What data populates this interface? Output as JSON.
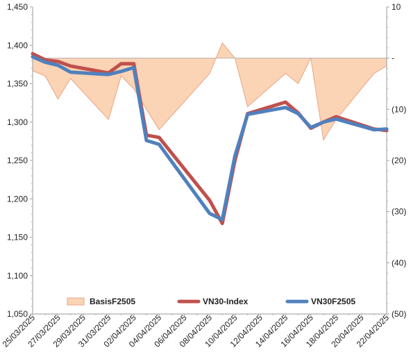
{
  "chart_data": {
    "type": "line",
    "dates": [
      "25/03/2025",
      "26/03/2025",
      "27/03/2025",
      "28/03/2025",
      "31/03/2025",
      "01/04/2025",
      "02/04/2025",
      "03/04/2025",
      "04/04/2025",
      "08/04/2025",
      "09/04/2025",
      "10/04/2025",
      "11/04/2025",
      "14/04/2025",
      "15/04/2025",
      "16/04/2025",
      "17/04/2025",
      "18/04/2025",
      "21/04/2025",
      "22/04/2025"
    ],
    "x_tick_labels": [
      "25/03/2025",
      "27/03/2025",
      "29/03/2025",
      "31/03/2025",
      "02/04/2025",
      "04/04/2025",
      "06/04/2025",
      "08/04/2025",
      "10/04/2025",
      "12/04/2025",
      "14/04/2025",
      "16/04/2025",
      "18/04/2025",
      "20/04/2025",
      "22/04/2025"
    ],
    "left_axis": {
      "ylim": [
        1050,
        1450
      ],
      "tick_labels": [
        "1,050",
        "1,100",
        "1,150",
        "1,200",
        "1,250",
        "1,300",
        "1,350",
        "1,400",
        "1,450"
      ]
    },
    "right_axis": {
      "ylim": [
        -50,
        10
      ],
      "tick_labels": [
        "(50)",
        "(40)",
        "(30)",
        "(20)",
        "(10)",
        "-",
        "10"
      ]
    },
    "series": [
      {
        "name": "VN30-Index",
        "axis": "left",
        "color": "#c0504d",
        "values": [
          1389,
          1381,
          1379,
          1373,
          1364,
          1376,
          1376,
          1283,
          1280,
          1198,
          1168,
          1250,
          1311,
          1326,
          1312,
          1292,
          1300,
          1307,
          1291,
          1289
        ]
      },
      {
        "name": "VN30F2505",
        "axis": "left",
        "color": "#4f81bd",
        "values": [
          1385,
          1378,
          1374,
          1365,
          1362,
          1366,
          1371,
          1276,
          1271,
          1181,
          1173,
          1256,
          1310,
          1319,
          1311,
          1293,
          1300,
          1304,
          1290,
          1291
        ]
      },
      {
        "name": "BasisF2505",
        "axis": "right",
        "color": "#fbd3b5",
        "type": "area",
        "values": [
          -2.5,
          -3.5,
          -8,
          -4,
          -12,
          -3.5,
          -6,
          -10,
          -14,
          -3,
          3,
          0,
          -9.5,
          -3,
          -5,
          0,
          -16,
          -12,
          -3,
          -1.5
        ]
      }
    ],
    "legend": [
      "BasisF2505",
      "VN30-Index",
      "VN30F2505"
    ],
    "legend_position": "bottom"
  }
}
